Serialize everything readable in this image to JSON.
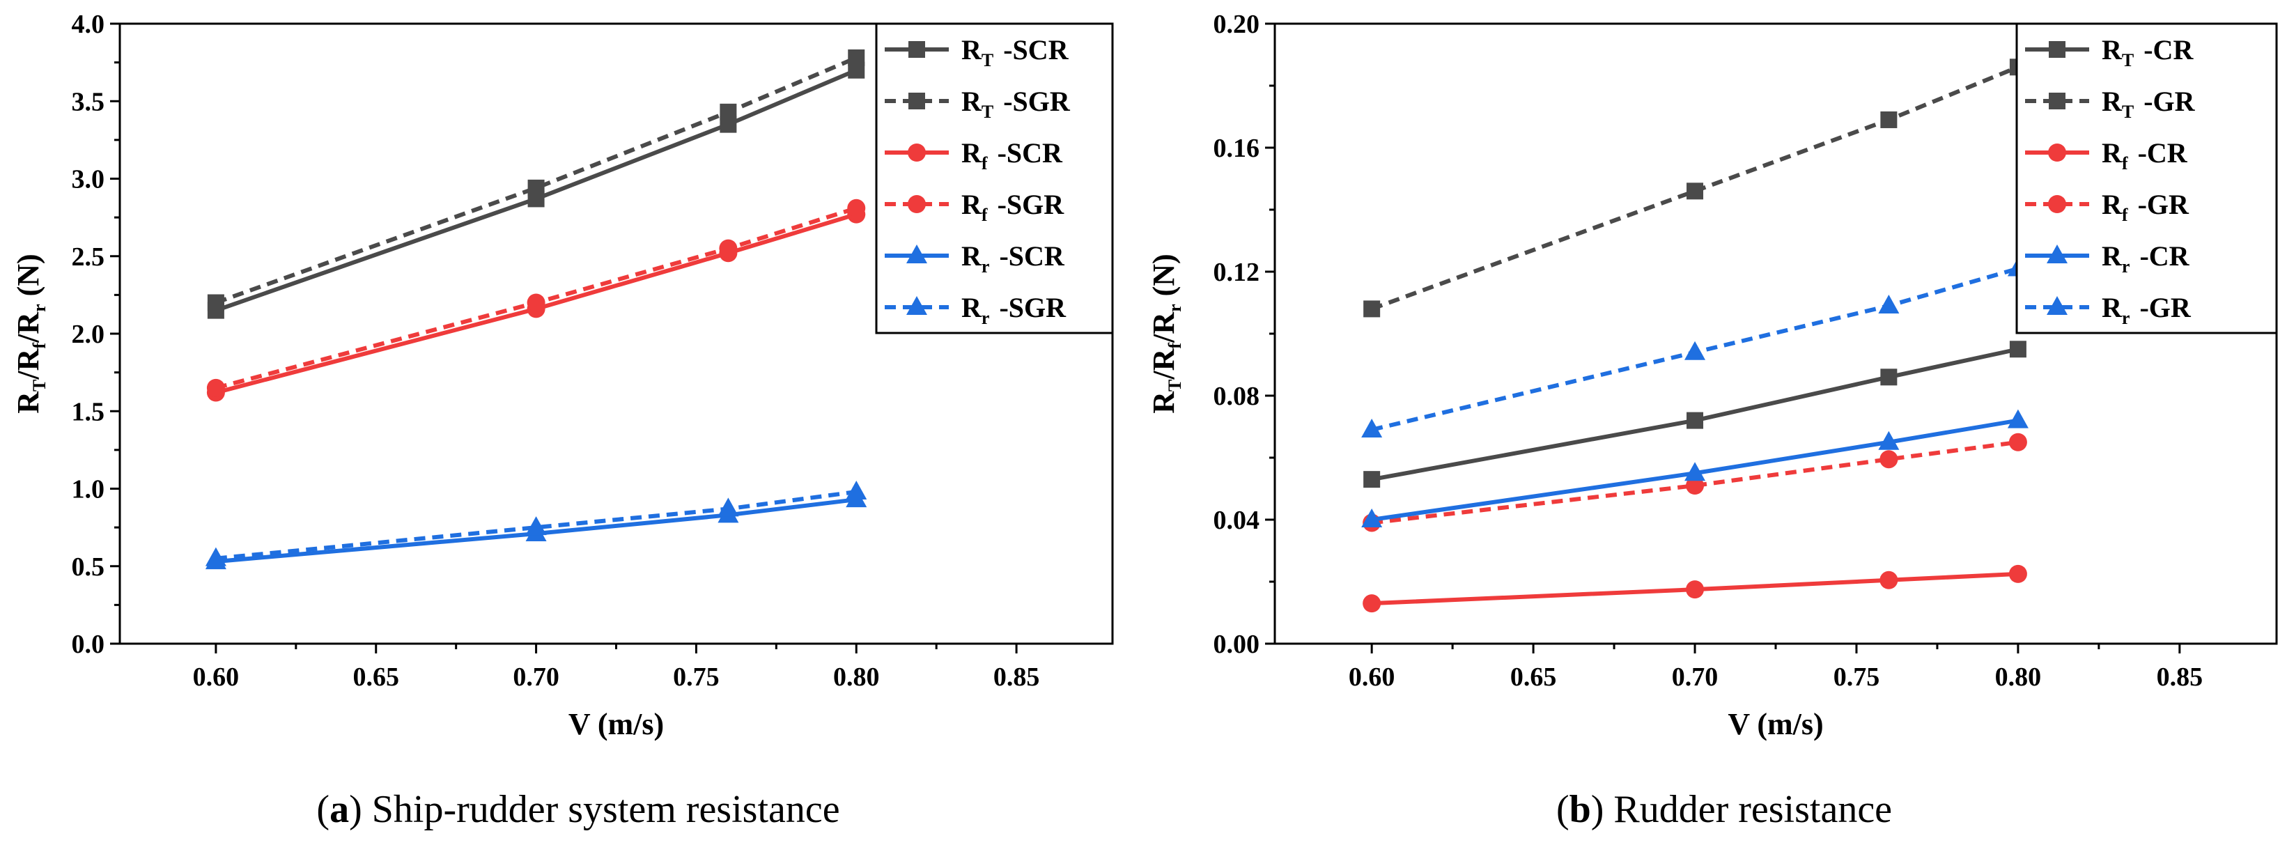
{
  "chart_data": [
    {
      "type": "line",
      "panel": "a",
      "caption_letter": "a",
      "caption_text": "Ship-rudder system resistance",
      "xlabel": "V (m/s)",
      "ylabel": {
        "parts": [
          "R",
          "T",
          "/R",
          "f",
          "/R",
          "r",
          " (N)"
        ]
      },
      "xlim": [
        0.57,
        0.88
      ],
      "ylim": [
        0,
        4.0
      ],
      "xticks": [
        "0.60",
        "0.65",
        "0.70",
        "0.75",
        "0.80",
        "0.85"
      ],
      "yticks": [
        "0.0",
        "0.5",
        "1.0",
        "1.5",
        "2.0",
        "2.5",
        "3.0",
        "3.5",
        "4.0"
      ],
      "legend_position": "top-right",
      "x": [
        0.6,
        0.7,
        0.76,
        0.8
      ],
      "series": [
        {
          "name": "RT -SCR",
          "base": "R",
          "sub": "T",
          "tag": "-SCR",
          "color": "#4a4a4a",
          "dash": false,
          "marker": "square",
          "values": [
            2.15,
            2.87,
            3.35,
            3.7
          ]
        },
        {
          "name": "RT -SGR",
          "base": "R",
          "sub": "T",
          "tag": "-SGR",
          "color": "#4a4a4a",
          "dash": true,
          "marker": "square",
          "values": [
            2.2,
            2.94,
            3.43,
            3.78
          ]
        },
        {
          "name": "Rf -SCR",
          "base": "R",
          "sub": "f",
          "tag": "-SCR",
          "color": "#ef3b3b",
          "dash": false,
          "marker": "circle",
          "values": [
            1.62,
            2.16,
            2.52,
            2.77
          ]
        },
        {
          "name": "Rf -SGR",
          "base": "R",
          "sub": "f",
          "tag": "-SGR",
          "color": "#ef3b3b",
          "dash": true,
          "marker": "circle",
          "values": [
            1.65,
            2.2,
            2.55,
            2.81
          ]
        },
        {
          "name": "Rr -SCR",
          "base": "R",
          "sub": "r",
          "tag": "-SCR",
          "color": "#1f6fe0",
          "dash": false,
          "marker": "triangle",
          "values": [
            0.53,
            0.71,
            0.83,
            0.93
          ]
        },
        {
          "name": "Rr -SGR",
          "base": "R",
          "sub": "r",
          "tag": "-SGR",
          "color": "#1f6fe0",
          "dash": true,
          "marker": "triangle",
          "values": [
            0.55,
            0.75,
            0.87,
            0.98
          ]
        }
      ]
    },
    {
      "type": "line",
      "panel": "b",
      "caption_letter": "b",
      "caption_text": "Rudder resistance",
      "xlabel": "V (m/s)",
      "ylabel": {
        "parts": [
          "R",
          "T",
          "/R",
          "f",
          "/R",
          "r",
          " (N)"
        ]
      },
      "xlim": [
        0.57,
        0.88
      ],
      "ylim": [
        0,
        0.2
      ],
      "xticks": [
        "0.60",
        "0.65",
        "0.70",
        "0.75",
        "0.80",
        "0.85"
      ],
      "yticks": [
        "0.00",
        "0.04",
        "0.08",
        "0.12",
        "0.16",
        "0.20"
      ],
      "legend_position": "top-right",
      "x": [
        0.6,
        0.7,
        0.76,
        0.8
      ],
      "series": [
        {
          "name": "RT -CR",
          "base": "R",
          "sub": "T",
          "tag": "-CR",
          "color": "#4a4a4a",
          "dash": false,
          "marker": "square",
          "values": [
            0.053,
            0.072,
            0.086,
            0.095
          ]
        },
        {
          "name": "RT -GR",
          "base": "R",
          "sub": "T",
          "tag": "-GR",
          "color": "#4a4a4a",
          "dash": true,
          "marker": "square",
          "values": [
            0.108,
            0.146,
            0.169,
            0.186
          ]
        },
        {
          "name": "Rf -CR",
          "base": "R",
          "sub": "f",
          "tag": "-CR",
          "color": "#ef3b3b",
          "dash": false,
          "marker": "circle",
          "values": [
            0.013,
            0.0175,
            0.0205,
            0.0225
          ]
        },
        {
          "name": "Rf -GR",
          "base": "R",
          "sub": "f",
          "tag": "-GR",
          "color": "#ef3b3b",
          "dash": true,
          "marker": "circle",
          "values": [
            0.039,
            0.051,
            0.0595,
            0.065
          ]
        },
        {
          "name": "Rr -CR",
          "base": "R",
          "sub": "r",
          "tag": "-CR",
          "color": "#1f6fe0",
          "dash": false,
          "marker": "triangle",
          "values": [
            0.04,
            0.055,
            0.065,
            0.072
          ]
        },
        {
          "name": "Rr -GR",
          "base": "R",
          "sub": "r",
          "tag": "-GR",
          "color": "#1f6fe0",
          "dash": true,
          "marker": "triangle",
          "values": [
            0.069,
            0.094,
            0.109,
            0.121
          ]
        }
      ]
    }
  ]
}
